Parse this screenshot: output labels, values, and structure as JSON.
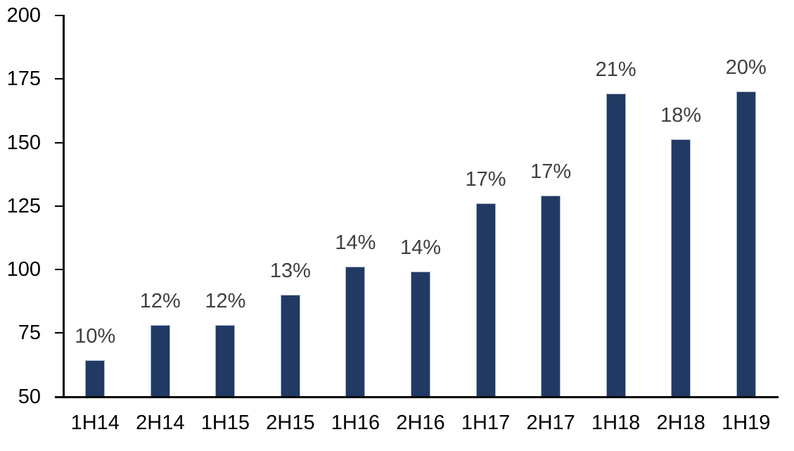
{
  "chart_data": {
    "type": "bar",
    "categories": [
      "1H14",
      "2H14",
      "1H15",
      "2H15",
      "1H16",
      "2H16",
      "1H17",
      "2H17",
      "1H18",
      "2H18",
      "1H19"
    ],
    "values": [
      64,
      78,
      78,
      90,
      101,
      99,
      126,
      129,
      169,
      151,
      170
    ],
    "bar_labels": [
      "10%",
      "12%",
      "12%",
      "13%",
      "14%",
      "14%",
      "17%",
      "17%",
      "21%",
      "18%",
      "20%"
    ],
    "ylim": [
      50,
      200
    ],
    "yticks": [
      200,
      175,
      150,
      125,
      100,
      75,
      50
    ],
    "grid": false,
    "legend": false,
    "colors": {
      "bar_fill": "#203A64",
      "bar_border": "#A9B2C6",
      "value_label": "#404040",
      "axis_text": "#000000",
      "axis_line": "#000000"
    }
  }
}
